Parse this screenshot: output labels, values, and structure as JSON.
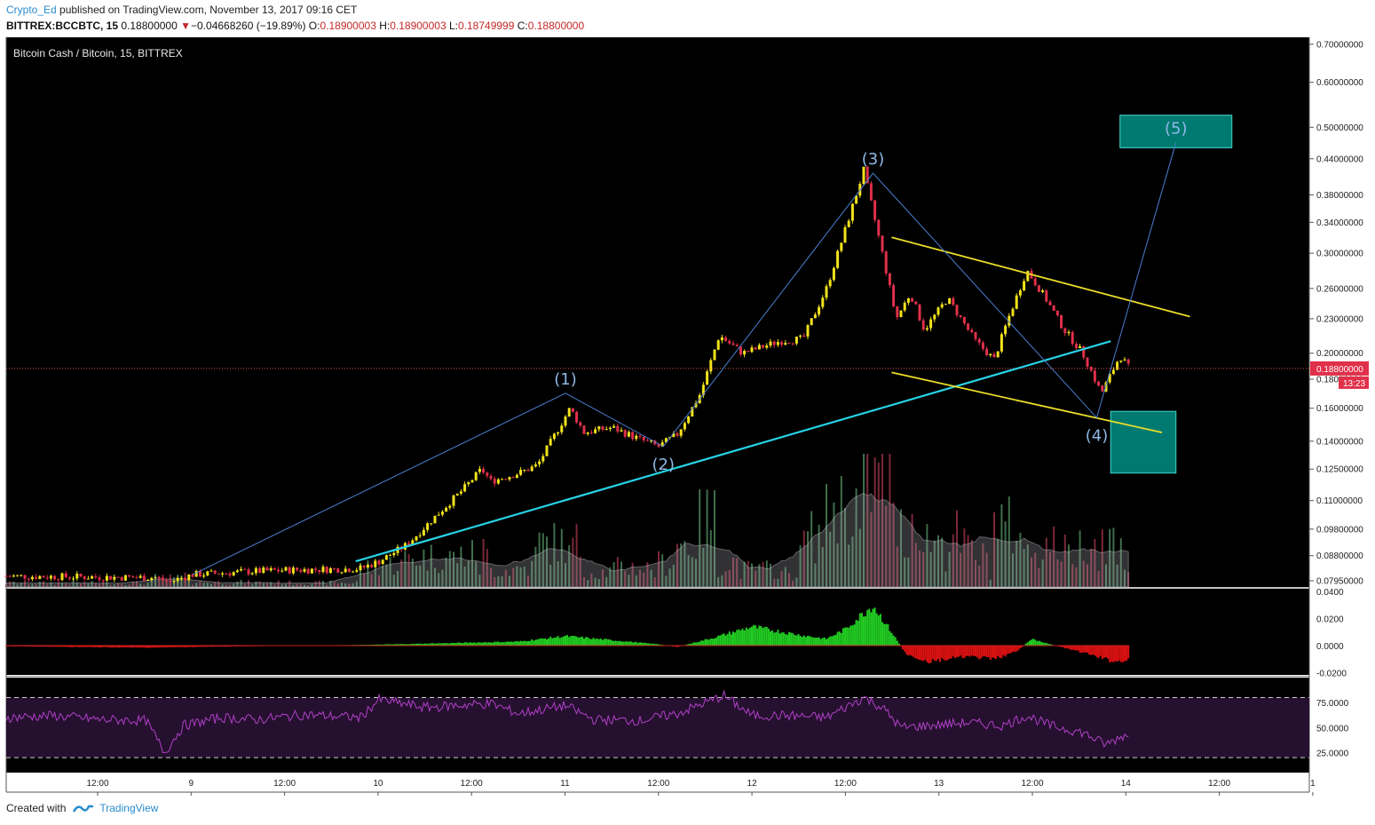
{
  "header": {
    "author": "Crypto_Ed",
    "published_text": " published on TradingView.com, November 13, 2017 09:16 CET",
    "symbol": "BITTREX:BCCBTC, 15",
    "last": "0.18800000",
    "change": "−0.04668260 (−19.89%)",
    "o_label": "O:",
    "o": "0.18900003",
    "h_label": "H:",
    "h": "0.18900003",
    "l_label": "L:",
    "l": "0.18749999",
    "c_label": "C:",
    "c": "0.18800000"
  },
  "footer": {
    "created_with": "Created with",
    "brand": "TradingView"
  },
  "colors": {
    "background": "#000000",
    "candle_up": "#f2e21b",
    "candle_down": "#e0304a",
    "trend_cyan": "#27d3e6",
    "channel_yellow": "#e9dc2a",
    "wave_blue": "#4a7fd0",
    "target_box": "#007a70",
    "rsi_line": "#b040c8",
    "rsi_band": "#26102f",
    "macd_up": "#22cc22",
    "macd_down": "#dd1111",
    "price_line": "#e05050"
  },
  "chart_data": {
    "type": "candlestick",
    "title": "Bitcoin Cash / Bitcoin, 15, BITTREX",
    "x_ticks": [
      "12:00",
      "9",
      "12:00",
      "10",
      "12:00",
      "11",
      "12:00",
      "12",
      "12:00",
      "13",
      "12:00",
      "14",
      "12:00",
      "1"
    ],
    "y_scale": "log",
    "y_ticks": [
      "0.70000000",
      "0.60000000",
      "0.50000000",
      "0.44000000",
      "0.38000000",
      "0.34000000",
      "0.30000000",
      "0.26000000",
      "0.23000000",
      "0.20000000",
      "0.18000000",
      "0.16000000",
      "0.14000000",
      "0.12500000",
      "0.11000000",
      "0.09800000",
      "0.08800000",
      "0.07950000"
    ],
    "price_path": [
      [
        0,
        0.081
      ],
      [
        1.6,
        0.0805
      ],
      [
        1.75,
        0.0792
      ],
      [
        2.0,
        0.0815
      ],
      [
        2.6,
        0.0825
      ],
      [
        3.0,
        0.083
      ],
      [
        3.8,
        0.0835
      ],
      [
        4.0,
        0.086
      ],
      [
        4.3,
        0.092
      ],
      [
        4.6,
        0.103
      ],
      [
        4.9,
        0.115
      ],
      [
        5.1,
        0.125
      ],
      [
        5.2,
        0.119
      ],
      [
        5.5,
        0.123
      ],
      [
        5.7,
        0.127
      ],
      [
        5.9,
        0.145
      ],
      [
        6.05,
        0.16
      ],
      [
        6.2,
        0.145
      ],
      [
        6.5,
        0.148
      ],
      [
        6.8,
        0.141
      ],
      [
        7.0,
        0.137
      ],
      [
        7.2,
        0.144
      ],
      [
        7.45,
        0.17
      ],
      [
        7.65,
        0.215
      ],
      [
        7.9,
        0.2
      ],
      [
        8.3,
        0.21
      ],
      [
        8.55,
        0.212
      ],
      [
        8.8,
        0.26
      ],
      [
        8.95,
        0.31
      ],
      [
        9.2,
        0.42
      ],
      [
        9.4,
        0.3
      ],
      [
        9.55,
        0.23
      ],
      [
        9.7,
        0.255
      ],
      [
        9.85,
        0.22
      ],
      [
        10.1,
        0.25
      ],
      [
        10.4,
        0.21
      ],
      [
        10.6,
        0.195
      ],
      [
        10.75,
        0.23
      ],
      [
        10.95,
        0.28
      ],
      [
        11.15,
        0.25
      ],
      [
        11.35,
        0.22
      ],
      [
        11.55,
        0.2
      ],
      [
        11.75,
        0.17
      ],
      [
        11.95,
        0.198
      ],
      [
        12.05,
        0.188
      ]
    ],
    "waves": [
      {
        "label": "(1)",
        "x": 6.0,
        "y": 0.17
      },
      {
        "label": "(2)",
        "x": 7.05,
        "y": 0.137
      },
      {
        "label": "(3)",
        "x": 9.3,
        "y": 0.415
      },
      {
        "label": "(4)",
        "x": 11.7,
        "y": 0.154
      },
      {
        "label": "(5)",
        "x": 12.55,
        "y": 0.47
      }
    ],
    "wave_start": {
      "x": 2.0,
      "y": 0.0815
    },
    "trendline": {
      "from": [
        3.75,
        0.086
      ],
      "to": [
        11.85,
        0.21
      ]
    },
    "channel_upper": {
      "from": [
        9.5,
        0.32
      ],
      "to": [
        12.7,
        0.232
      ]
    },
    "channel_lower": {
      "from": [
        9.5,
        0.185
      ],
      "to": [
        12.4,
        0.145
      ]
    },
    "target_boxes": [
      {
        "x0": 11.95,
        "x1": 13.15,
        "y0": 0.46,
        "y1": 0.525
      },
      {
        "x0": 11.85,
        "x1": 12.55,
        "y0": 0.123,
        "y1": 0.158
      }
    ],
    "last_price": 0.188,
    "last_price_label": "0.18800000",
    "countdown": "13:23",
    "macd": {
      "y_ticks": [
        "0.0400",
        "0.0200",
        "0.0000",
        "-0.0200"
      ],
      "path": [
        [
          0,
          -0.0005
        ],
        [
          1.0,
          -0.0012
        ],
        [
          1.5,
          -0.0015
        ],
        [
          2.0,
          -0.001
        ],
        [
          3.8,
          0.0005
        ],
        [
          4.5,
          0.0015
        ],
        [
          5.5,
          0.003
        ],
        [
          6.0,
          0.007
        ],
        [
          6.5,
          0.004
        ],
        [
          7.0,
          0.001
        ],
        [
          7.2,
          -0.001
        ],
        [
          7.6,
          0.006
        ],
        [
          8.0,
          0.014
        ],
        [
          8.5,
          0.008
        ],
        [
          8.8,
          0.005
        ],
        [
          9.0,
          0.012
        ],
        [
          9.3,
          0.03
        ],
        [
          9.5,
          0.01
        ],
        [
          9.65,
          -0.006
        ],
        [
          9.9,
          -0.012
        ],
        [
          10.3,
          -0.008
        ],
        [
          10.6,
          -0.01
        ],
        [
          10.85,
          -0.004
        ],
        [
          11.0,
          0.005
        ],
        [
          11.2,
          0.001
        ],
        [
          11.6,
          -0.006
        ],
        [
          11.9,
          -0.012
        ],
        [
          12.05,
          -0.01
        ]
      ]
    },
    "rsi": {
      "y_ticks": [
        "75.0000",
        "50.0000",
        "25.0000"
      ],
      "upper": 80,
      "lower": 20,
      "path": [
        [
          0,
          60
        ],
        [
          0.5,
          62
        ],
        [
          1.0,
          58
        ],
        [
          1.5,
          57
        ],
        [
          1.7,
          25
        ],
        [
          1.9,
          52
        ],
        [
          2.3,
          60
        ],
        [
          2.7,
          58
        ],
        [
          3.2,
          63
        ],
        [
          3.8,
          60
        ],
        [
          4.0,
          78
        ],
        [
          4.5,
          70
        ],
        [
          4.8,
          72
        ],
        [
          5.2,
          74
        ],
        [
          5.5,
          64
        ],
        [
          6.0,
          72
        ],
        [
          6.3,
          58
        ],
        [
          6.8,
          57
        ],
        [
          7.2,
          64
        ],
        [
          7.7,
          82
        ],
        [
          8.0,
          62
        ],
        [
          8.4,
          62
        ],
        [
          8.8,
          60
        ],
        [
          9.2,
          80
        ],
        [
          9.4,
          70
        ],
        [
          9.6,
          50
        ],
        [
          9.9,
          52
        ],
        [
          10.3,
          55
        ],
        [
          10.7,
          52
        ],
        [
          10.95,
          62
        ],
        [
          11.2,
          52
        ],
        [
          11.55,
          45
        ],
        [
          11.8,
          33
        ],
        [
          12.05,
          45
        ]
      ]
    }
  }
}
